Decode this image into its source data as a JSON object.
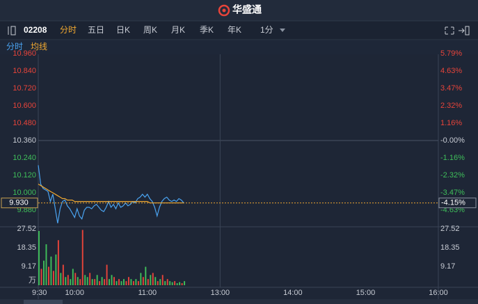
{
  "header": {
    "brand": "华盛通"
  },
  "toolbar": {
    "symbol": "02208",
    "tabs": [
      "分时",
      "五日",
      "日K",
      "周K",
      "月K",
      "季K",
      "年K"
    ],
    "interval": "1分"
  },
  "chart_data": [
    {
      "type": "line",
      "x": [
        0,
        2,
        4,
        6,
        8,
        10,
        12,
        14,
        16,
        18,
        20,
        22,
        24,
        26,
        28,
        30,
        32,
        34,
        36,
        38,
        40,
        42,
        44,
        46,
        48,
        50,
        52,
        54,
        56,
        58,
        60,
        62,
        64,
        66,
        68,
        70,
        72,
        74,
        76,
        78,
        80,
        82,
        84,
        86,
        88,
        90,
        92,
        94,
        96,
        98,
        100,
        102,
        104,
        106,
        108,
        110,
        112,
        114,
        116,
        118,
        120
      ],
      "series": [
        {
          "name": "分时",
          "color": "#4aa3f0",
          "values": [
            10.19,
            10.06,
            10.03,
            10.02,
            10.01,
            9.94,
            9.99,
            9.89,
            9.79,
            9.89,
            9.94,
            9.95,
            9.91,
            9.89,
            9.86,
            9.83,
            9.89,
            9.84,
            9.82,
            9.88,
            9.9,
            9.9,
            9.89,
            9.91,
            9.92,
            9.9,
            9.88,
            9.87,
            9.9,
            9.94,
            9.9,
            9.92,
            9.89,
            9.93,
            9.9,
            9.91,
            9.93,
            9.91,
            9.92,
            9.94,
            9.93,
            9.96,
            9.97,
            9.99,
            9.97,
            9.99,
            9.96,
            9.94,
            9.9,
            9.84,
            9.9,
            9.94,
            9.96,
            9.97,
            9.95,
            9.94,
            9.95,
            9.94,
            9.96,
            9.95,
            9.93
          ]
        },
        {
          "name": "均线",
          "color": "#f0a830",
          "values": [
            10.06,
            10.05,
            10.04,
            10.03,
            10.02,
            10.01,
            10.0,
            9.99,
            9.98,
            9.97,
            9.96,
            9.96,
            9.95,
            9.95,
            9.95,
            9.94,
            9.94,
            9.94,
            9.94,
            9.94,
            9.94,
            9.94,
            9.94,
            9.94,
            9.94,
            9.94,
            9.94,
            9.94,
            9.94,
            9.94,
            9.94,
            9.94,
            9.94,
            9.94,
            9.94,
            9.94,
            9.94,
            9.94,
            9.94,
            9.94,
            9.94,
            9.94,
            9.94,
            9.94,
            9.94,
            9.94,
            9.93,
            9.93,
            9.93,
            9.93,
            9.93,
            9.93,
            9.93,
            9.93,
            9.93,
            9.93,
            9.93,
            9.93,
            9.93,
            9.93,
            9.93
          ]
        }
      ],
      "xlim": [
        0,
        330
      ],
      "ylim": [
        9.78,
        10.96
      ],
      "yticks": [
        {
          "value": 10.96,
          "label": "10.960"
        },
        {
          "value": 10.84,
          "label": "10.840"
        },
        {
          "value": 10.72,
          "label": "10.720"
        },
        {
          "value": 10.6,
          "label": "10.600"
        },
        {
          "value": 10.48,
          "label": "10.480"
        },
        {
          "value": 10.36,
          "label": "10.360"
        },
        {
          "value": 10.24,
          "label": "10.240"
        },
        {
          "value": 10.12,
          "label": "10.120"
        },
        {
          "value": 10.0,
          "label": "10.000"
        },
        {
          "value": 9.88,
          "label": "9.880"
        }
      ],
      "y2lim": [
        -5.6,
        5.79
      ],
      "y2ticks": [
        {
          "value": 5.79,
          "label": "5.79%"
        },
        {
          "value": 4.63,
          "label": "4.63%"
        },
        {
          "value": 3.47,
          "label": "3.47%"
        },
        {
          "value": 2.32,
          "label": "2.32%"
        },
        {
          "value": 1.16,
          "label": "1.16%"
        },
        {
          "value": 0,
          "label": "-0.00%"
        },
        {
          "value": -1.16,
          "label": "-1.16%"
        },
        {
          "value": -2.32,
          "label": "-2.32%"
        },
        {
          "value": -3.47,
          "label": "-3.47%"
        },
        {
          "value": -4.63,
          "label": "-4.63%"
        }
      ],
      "last_price": {
        "value": 9.93,
        "label": "9.930"
      },
      "last_change": {
        "value": -4.15,
        "label": "-4.15%"
      },
      "up_color": "#e8443a",
      "down_color": "#3fbf5a",
      "flat_color": "#c8ccd4"
    },
    {
      "type": "bar",
      "x": [
        0,
        2,
        4,
        6,
        8,
        10,
        12,
        14,
        16,
        18,
        20,
        22,
        24,
        26,
        28,
        30,
        32,
        34,
        36,
        38,
        40,
        42,
        44,
        46,
        48,
        50,
        52,
        54,
        56,
        58,
        60,
        62,
        64,
        66,
        68,
        70,
        72,
        74,
        76,
        78,
        80,
        82,
        84,
        86,
        88,
        90,
        92,
        94,
        96,
        98,
        100,
        102,
        104,
        106,
        108,
        110,
        112,
        114,
        116,
        118,
        120
      ],
      "values": [
        26.5,
        8,
        12,
        20,
        9,
        14,
        7,
        15,
        22,
        6,
        10,
        4,
        5,
        3,
        8,
        6,
        4,
        3,
        27,
        5,
        4,
        6,
        3,
        3,
        5,
        2,
        4,
        3,
        10,
        3,
        5,
        4,
        2,
        3,
        2,
        3,
        2,
        4,
        3,
        2,
        3,
        2,
        6,
        4,
        9,
        3,
        5,
        6,
        4,
        2,
        3,
        5,
        2,
        3,
        2,
        1.5,
        2,
        1,
        1.5,
        1,
        2
      ],
      "colors": [
        "#3fbf5a",
        "#e8443a",
        "#3fbf5a",
        "#3fbf5a",
        "#e8443a",
        "#3fbf5a",
        "#e8443a",
        "#3fbf5a",
        "#e8443a",
        "#3fbf5a",
        "#e8443a",
        "#3fbf5a",
        "#e8443a",
        "#3fbf5a",
        "#3fbf5a",
        "#e8443a",
        "#3fbf5a",
        "#e8443a",
        "#e8443a",
        "#3fbf5a",
        "#3fbf5a",
        "#e8443a",
        "#3fbf5a",
        "#e8443a",
        "#3fbf5a",
        "#e8443a",
        "#3fbf5a",
        "#e8443a",
        "#e8443a",
        "#3fbf5a",
        "#3fbf5a",
        "#e8443a",
        "#3fbf5a",
        "#e8443a",
        "#3fbf5a",
        "#3fbf5a",
        "#e8443a",
        "#e8443a",
        "#3fbf5a",
        "#e8443a",
        "#3fbf5a",
        "#e8443a",
        "#3fbf5a",
        "#e8443a",
        "#3fbf5a",
        "#e8443a",
        "#3fbf5a",
        "#e8443a",
        "#3fbf5a",
        "#e8443a",
        "#3fbf5a",
        "#e8443a",
        "#3fbf5a",
        "#e8443a",
        "#3fbf5a",
        "#3fbf5a",
        "#e8443a",
        "#3fbf5a",
        "#3fbf5a",
        "#e8443a",
        "#3fbf5a"
      ],
      "xlim": [
        0,
        330
      ],
      "xticks": [
        {
          "value": 0,
          "label": "9:30"
        },
        {
          "value": 30,
          "label": "10:00"
        },
        {
          "value": 90,
          "label": "11:00"
        },
        {
          "value": 150,
          "label": "13:00"
        },
        {
          "value": 210,
          "label": "14:00"
        },
        {
          "value": 270,
          "label": "15:00"
        },
        {
          "value": 330,
          "label": "16:00"
        }
      ],
      "ylim": [
        0,
        27.52
      ],
      "yticks": [
        27.52,
        18.35,
        9.17,
        {
          "value": 0,
          "label": "万"
        }
      ]
    }
  ]
}
